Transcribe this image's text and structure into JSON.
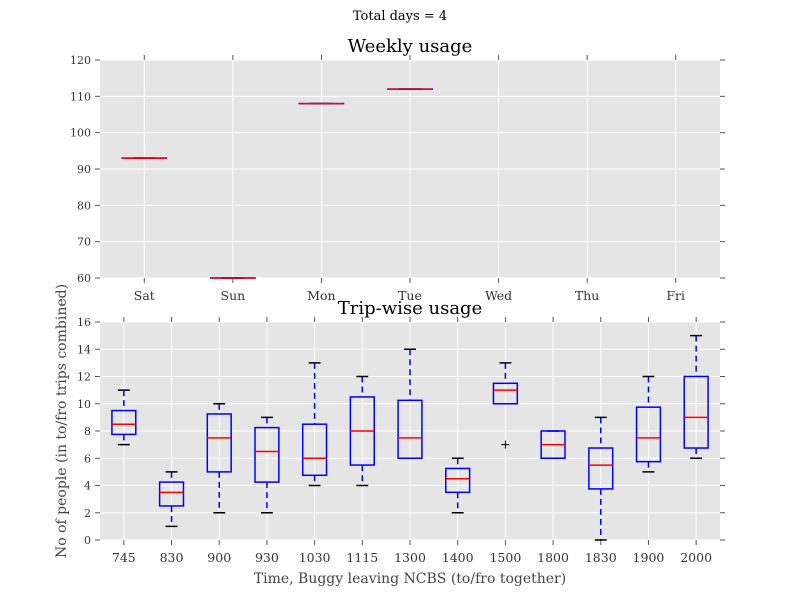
{
  "suptitle": "Total days = 4",
  "chart_data": [
    {
      "type": "box",
      "title": "Weekly usage",
      "xlabel": "",
      "ylabel": "",
      "ylim": [
        60,
        120
      ],
      "yticks": [
        60,
        70,
        80,
        90,
        100,
        110,
        120
      ],
      "grid": true,
      "categories": [
        "Sat",
        "Sun",
        "Mon",
        "Tue",
        "Wed",
        "Thu",
        "Fri"
      ],
      "boxes": [
        {
          "category": "Sat",
          "min": 93,
          "q1": 93,
          "median": 93,
          "q3": 93,
          "max": 93,
          "outliers": []
        },
        {
          "category": "Sun",
          "min": 60,
          "q1": 60,
          "median": 60,
          "q3": 60,
          "max": 60,
          "outliers": []
        },
        {
          "category": "Mon",
          "min": 108,
          "q1": 108,
          "median": 108,
          "q3": 108,
          "max": 108,
          "outliers": []
        },
        {
          "category": "Tue",
          "min": 112,
          "q1": 112,
          "median": 112,
          "q3": 112,
          "max": 112,
          "outliers": []
        }
      ],
      "colors": {
        "box": "#0000ff",
        "median": "#ff0000",
        "background": "#e5e5e5",
        "grid": "#ffffff"
      }
    },
    {
      "type": "box",
      "title": "Trip-wise usage",
      "xlabel": "Time, Buggy leaving NCBS (to/fro together)",
      "ylabel": "No of people (in to/fro trips combined)",
      "ylim": [
        0,
        16
      ],
      "yticks": [
        0,
        2,
        4,
        6,
        8,
        10,
        12,
        14,
        16
      ],
      "grid": true,
      "categories": [
        "745",
        "830",
        "900",
        "930",
        "1030",
        "1115",
        "1300",
        "1400",
        "1500",
        "1800",
        "1830",
        "1900",
        "2000"
      ],
      "boxes": [
        {
          "category": "745",
          "min": 7,
          "q1": 7.75,
          "median": 8.5,
          "q3": 9.5,
          "max": 11,
          "outliers": []
        },
        {
          "category": "830",
          "min": 1,
          "q1": 2.5,
          "median": 3.5,
          "q3": 4.25,
          "max": 5,
          "outliers": []
        },
        {
          "category": "900",
          "min": 2,
          "q1": 5,
          "median": 7.5,
          "q3": 9.25,
          "max": 10,
          "outliers": []
        },
        {
          "category": "930",
          "min": 2,
          "q1": 4.25,
          "median": 6.5,
          "q3": 8.25,
          "max": 9,
          "outliers": []
        },
        {
          "category": "1030",
          "min": 4,
          "q1": 4.75,
          "median": 6,
          "q3": 8.5,
          "max": 13,
          "outliers": []
        },
        {
          "category": "1115",
          "min": 4,
          "q1": 5.5,
          "median": 8,
          "q3": 10.5,
          "max": 12,
          "outliers": []
        },
        {
          "category": "1300",
          "min": 6,
          "q1": 6,
          "median": 7.5,
          "q3": 10.25,
          "max": 14,
          "outliers": []
        },
        {
          "category": "1400",
          "min": 2,
          "q1": 3.5,
          "median": 4.5,
          "q3": 5.25,
          "max": 6,
          "outliers": []
        },
        {
          "category": "1500",
          "min": 10,
          "q1": 10,
          "median": 11,
          "q3": 11.5,
          "max": 13,
          "outliers": [
            7
          ]
        },
        {
          "category": "1800",
          "min": 6,
          "q1": 6,
          "median": 7,
          "q3": 8,
          "max": 8,
          "outliers": []
        },
        {
          "category": "1830",
          "min": 0,
          "q1": 3.75,
          "median": 5.5,
          "q3": 6.75,
          "max": 9,
          "outliers": []
        },
        {
          "category": "1900",
          "min": 5,
          "q1": 5.75,
          "median": 7.5,
          "q3": 9.75,
          "max": 12,
          "outliers": []
        },
        {
          "category": "2000",
          "min": 6,
          "q1": 6.75,
          "median": 9,
          "q3": 12,
          "max": 15,
          "outliers": []
        }
      ],
      "colors": {
        "box": "#0000ff",
        "median": "#ff0000",
        "background": "#e5e5e5",
        "grid": "#ffffff"
      }
    }
  ]
}
